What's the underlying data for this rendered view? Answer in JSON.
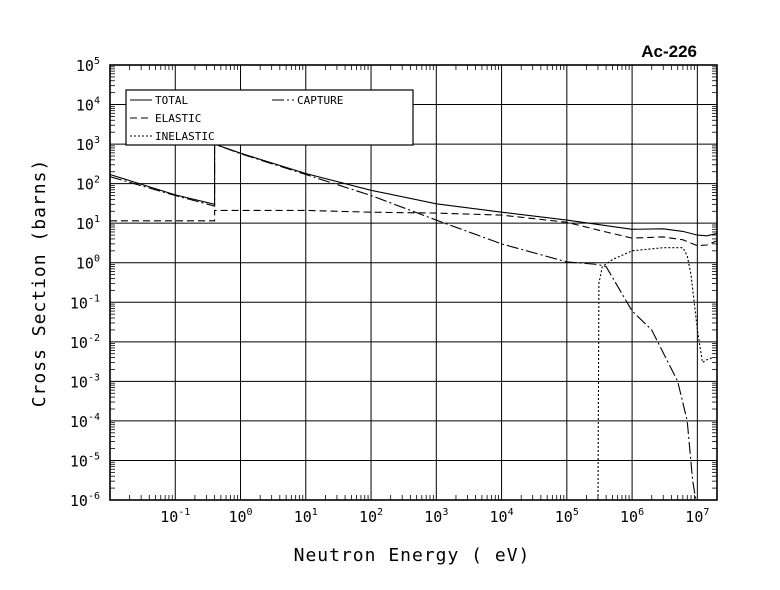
{
  "chart_data": {
    "type": "line",
    "title": "Ac-226",
    "xlabel": "Neutron Energy ( eV)",
    "ylabel": "Cross Section (barns)",
    "x_scale": "log",
    "y_scale": "log",
    "xlim": [
      0.01,
      20000000
    ],
    "ylim": [
      1e-06,
      100000
    ],
    "grid": true,
    "legend_position": "top-left",
    "x_ticks": [
      {
        "value": 0.1,
        "base": "10",
        "exp": "-1"
      },
      {
        "value": 1,
        "base": "10",
        "exp": "0"
      },
      {
        "value": 10,
        "base": "10",
        "exp": "1"
      },
      {
        "value": 100,
        "base": "10",
        "exp": "2"
      },
      {
        "value": 1000,
        "base": "10",
        "exp": "3"
      },
      {
        "value": 10000,
        "base": "10",
        "exp": "4"
      },
      {
        "value": 100000,
        "base": "10",
        "exp": "5"
      },
      {
        "value": 1000000,
        "base": "10",
        "exp": "6"
      },
      {
        "value": 10000000,
        "base": "10",
        "exp": "7"
      }
    ],
    "y_ticks": [
      {
        "value": 100000,
        "base": "10",
        "exp": "5"
      },
      {
        "value": 10000,
        "base": "10",
        "exp": "4"
      },
      {
        "value": 1000,
        "base": "10",
        "exp": "3"
      },
      {
        "value": 100,
        "base": "10",
        "exp": "2"
      },
      {
        "value": 10,
        "base": "10",
        "exp": "1"
      },
      {
        "value": 1,
        "base": "10",
        "exp": "0"
      },
      {
        "value": 0.1,
        "base": "10",
        "exp": "-1"
      },
      {
        "value": 0.01,
        "base": "10",
        "exp": "-2"
      },
      {
        "value": 0.001,
        "base": "10",
        "exp": "-3"
      },
      {
        "value": 0.0001,
        "base": "10",
        "exp": "-4"
      },
      {
        "value": 1e-05,
        "base": "10",
        "exp": "-5"
      },
      {
        "value": 1e-06,
        "base": "10",
        "exp": "-6"
      }
    ],
    "series": [
      {
        "name": "TOTAL",
        "dash": "",
        "points": [
          [
            0.01,
            170
          ],
          [
            0.1,
            52
          ],
          [
            0.4,
            30
          ],
          [
            0.4,
            1000
          ],
          [
            1,
            590
          ],
          [
            10,
            180
          ],
          [
            100,
            68
          ],
          [
            1000,
            31
          ],
          [
            10000,
            19
          ],
          [
            100000,
            12
          ],
          [
            1000000,
            7
          ],
          [
            3000000,
            7.2
          ],
          [
            6000000,
            6.2
          ],
          [
            10000000,
            5
          ],
          [
            14000000,
            4.8
          ],
          [
            20000000,
            5.5
          ]
        ]
      },
      {
        "name": "ELASTIC",
        "dash": "7,4",
        "points": [
          [
            0.01,
            11.5
          ],
          [
            0.4,
            11.5
          ],
          [
            0.4,
            21
          ],
          [
            10,
            21
          ],
          [
            100,
            19
          ],
          [
            1000,
            18
          ],
          [
            10000,
            16
          ],
          [
            100000,
            10.5
          ],
          [
            400000,
            6
          ],
          [
            1000000,
            4.2
          ],
          [
            3000000,
            4.5
          ],
          [
            6000000,
            3.8
          ],
          [
            10000000,
            2.7
          ],
          [
            14000000,
            2.8
          ],
          [
            20000000,
            3.6
          ]
        ]
      },
      {
        "name": "INELASTIC",
        "dash": "2,2",
        "points": [
          [
            300000,
            1e-06
          ],
          [
            310000,
            0.3
          ],
          [
            350000,
            0.8
          ],
          [
            500000,
            1.2
          ],
          [
            1000000,
            2
          ],
          [
            3000000,
            2.4
          ],
          [
            6000000,
            2.4
          ],
          [
            7000000,
            1.5
          ],
          [
            8000000,
            0.5
          ],
          [
            10000000,
            0.02
          ],
          [
            12000000,
            0.003
          ],
          [
            14000000,
            0.0035
          ],
          [
            17000000,
            0.004
          ]
        ]
      },
      {
        "name": "CAPTURE",
        "dash": "12,3,2,3",
        "points": [
          [
            0.01,
            150
          ],
          [
            0.1,
            50
          ],
          [
            0.4,
            27
          ],
          [
            0.4,
            1000
          ],
          [
            1,
            570
          ],
          [
            10,
            170
          ],
          [
            100,
            50
          ],
          [
            1000,
            12
          ],
          [
            10000,
            3
          ],
          [
            100000,
            1.05
          ],
          [
            300000,
            0.9
          ],
          [
            400000,
            0.8
          ],
          [
            1000000,
            0.06
          ],
          [
            2000000,
            0.02
          ],
          [
            5000000,
            0.001
          ],
          [
            7000000,
            0.0001
          ],
          [
            8500000,
            3e-06
          ],
          [
            9500000,
            1e-06
          ]
        ]
      }
    ]
  }
}
